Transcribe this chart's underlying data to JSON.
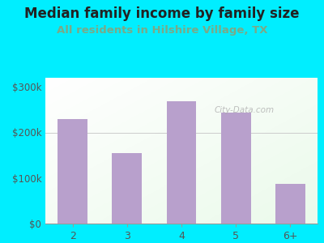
{
  "title": "Median family income by family size",
  "subtitle": "All residents in Hilshire Village, TX",
  "categories": [
    "2",
    "3",
    "4",
    "5",
    "6+"
  ],
  "values": [
    230000,
    155000,
    268000,
    243000,
    88000
  ],
  "bar_color": "#b8a0cc",
  "title_fontsize": 12,
  "subtitle_fontsize": 9.5,
  "subtitle_color": "#7aaa88",
  "title_color": "#222222",
  "background_outer": "#00eeff",
  "yticks": [
    0,
    100000,
    200000,
    300000
  ],
  "ytick_labels": [
    "$0",
    "$100k",
    "$200k",
    "$300k"
  ],
  "ylim": [
    0,
    320000
  ],
  "tick_color": "#555555",
  "watermark": "City-Data.com"
}
